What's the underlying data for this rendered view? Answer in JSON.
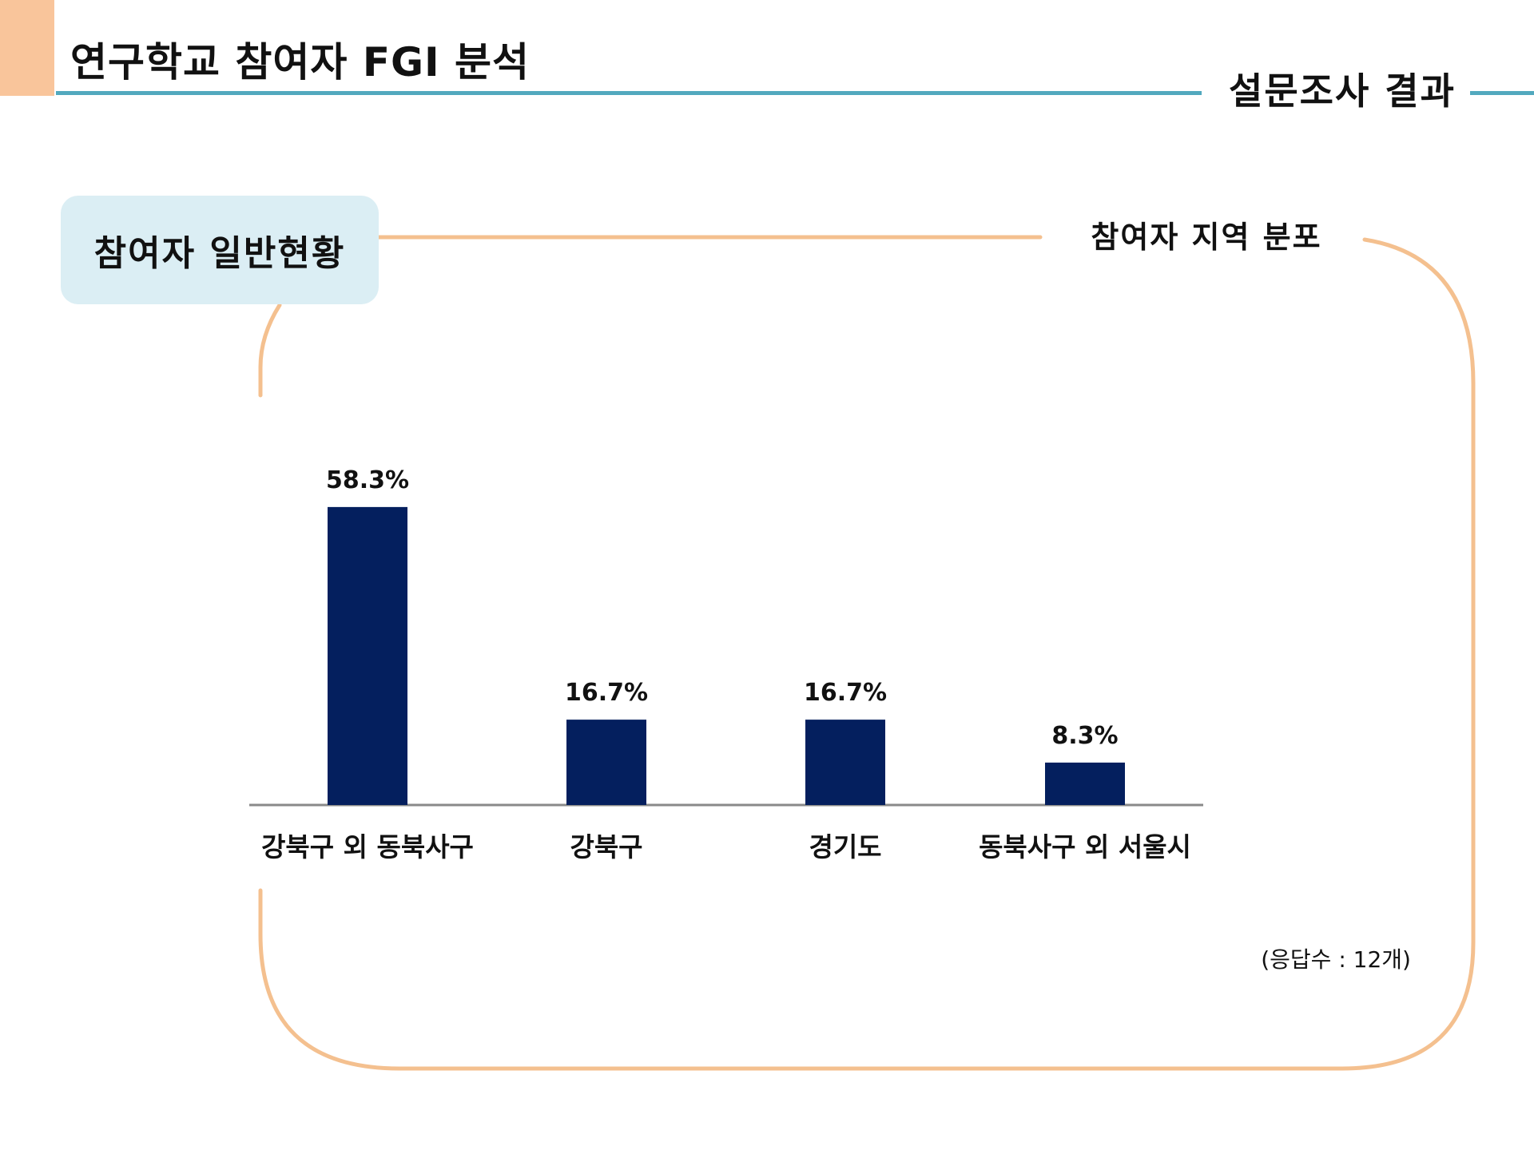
{
  "header": {
    "title": "연구학교 참여자 FGI 분석",
    "section": "설문조사 결과"
  },
  "panel": {
    "tag": "참여자 일반현황"
  },
  "chart_data": {
    "type": "bar",
    "title": "참여자 지역 분포",
    "categories": [
      "강북구 외 동북사구",
      "강북구",
      "경기도",
      "동북사구 외 서울시"
    ],
    "values": [
      58.3,
      16.7,
      16.7,
      8.3
    ],
    "data_labels": [
      "58.3%",
      "16.7%",
      "16.7%",
      "8.3%"
    ],
    "unit": "%",
    "ylim": [
      0,
      100
    ],
    "grid": false,
    "legend": "none",
    "note": "(응답수 : 12개)",
    "bar_color": "#041f5e",
    "axis_color": "#8a8a8a"
  },
  "colors": {
    "accent": "#f9c59b",
    "rule": "#52a9be",
    "frame": "#f4c08f",
    "tag_bg": "#dbeef4"
  }
}
